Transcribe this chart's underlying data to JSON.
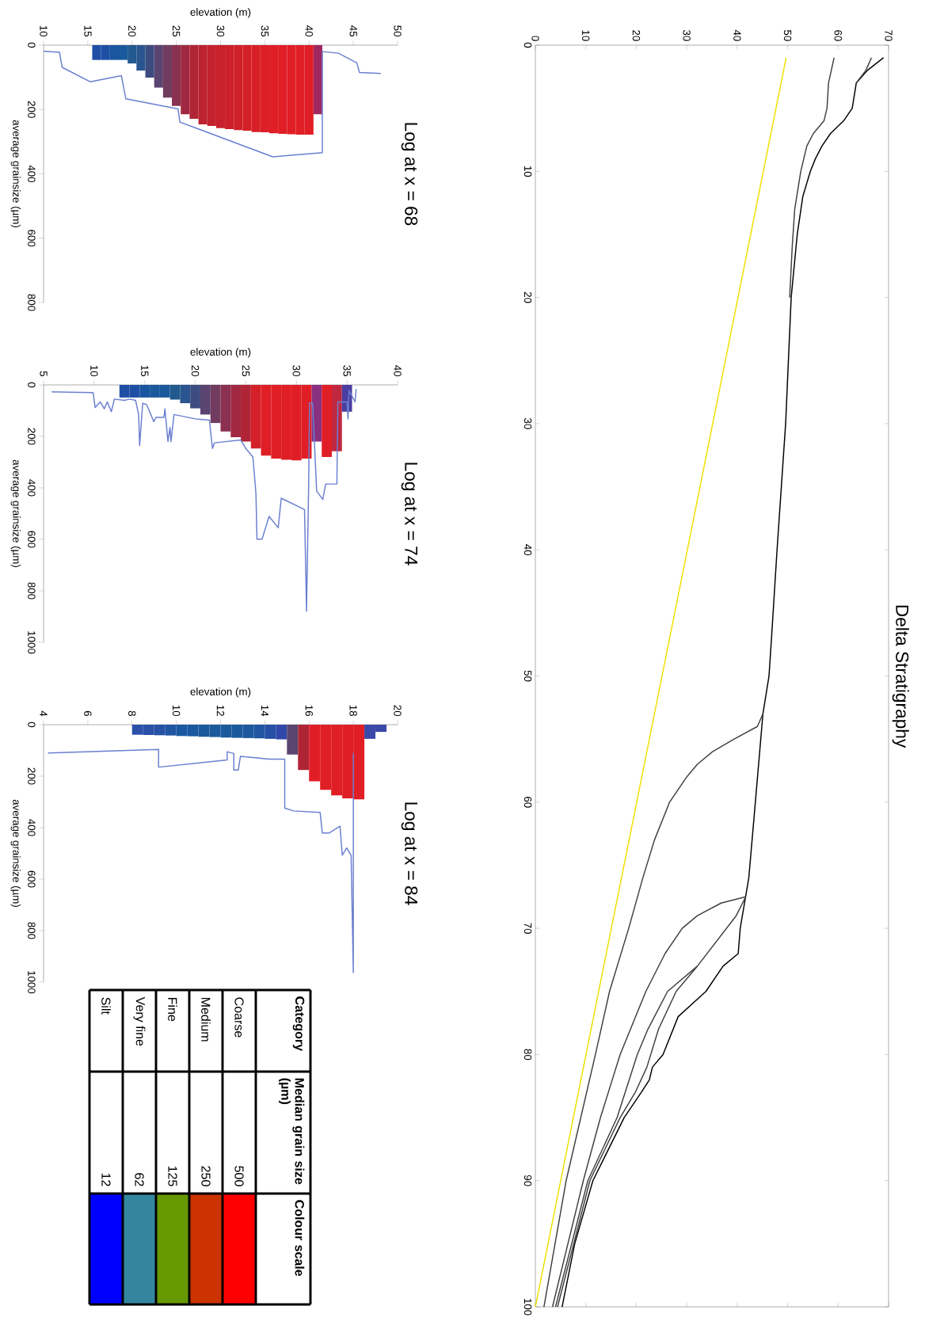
{
  "chart_data": [
    {
      "type": "line",
      "title": "Delta Stratigraphy",
      "xlim": [
        0,
        70
      ],
      "ylim": [
        100,
        0
      ],
      "xticks": [
        0,
        10,
        20,
        30,
        40,
        50,
        60,
        70
      ],
      "yticks": [
        0,
        10,
        20,
        30,
        40,
        50,
        60,
        70,
        80,
        90,
        100
      ],
      "marker": "none",
      "line_style": "solid",
      "series": [
        {
          "color": "#f0e000",
          "values": [
            1,
            100
          ],
          "x": [
            49.7,
            0
          ]
        },
        {
          "color": "#000000",
          "values": [
            1,
            2,
            3,
            5,
            6,
            7,
            8,
            9,
            10,
            12,
            15,
            20,
            30,
            40,
            47,
            50,
            53,
            60,
            66,
            70,
            72,
            73,
            75,
            77,
            80,
            81,
            82,
            83,
            85,
            90,
            95,
            100
          ],
          "x": [
            69.0,
            65.8,
            63.6,
            62.8,
            61.1,
            58.5,
            56.8,
            55.5,
            54.5,
            53.0,
            51.9,
            50.7,
            49.6,
            47.9,
            46.8,
            46.3,
            45.1,
            43.6,
            42.3,
            40.6,
            40.2,
            37.2,
            33.8,
            28.3,
            25.3,
            23.2,
            22.6,
            21.0,
            17.6,
            11.4,
            7.8,
            5.3
          ]
        },
        {
          "color": "#404040",
          "values": [
            1,
            3,
            5,
            6,
            7,
            8,
            10,
            13,
            16,
            20
          ],
          "x": [
            59.2,
            58.1,
            57.8,
            57.2,
            55.1,
            53.8,
            52.6,
            51.4,
            50.9,
            50.4
          ]
        },
        {
          "color": "#404040",
          "values": [
            1,
            2,
            3
          ],
          "x": [
            66.6,
            65.5,
            63.6
          ]
        },
        {
          "color": "#404040",
          "values": [
            53,
            54,
            55,
            56,
            57,
            58,
            60,
            63,
            66,
            70,
            75,
            80,
            90,
            100
          ],
          "x": [
            45.1,
            44.0,
            39.4,
            35.1,
            32.1,
            30.0,
            26.6,
            23.6,
            21.3,
            18.5,
            14.7,
            11.9,
            6.1,
            1.7
          ]
        },
        {
          "color": "#404040",
          "values": [
            67.5,
            68,
            69,
            70,
            72,
            75,
            80,
            85,
            90,
            100
          ],
          "x": [
            41.7,
            36.8,
            32.1,
            29.1,
            25.7,
            21.9,
            16.8,
            12.9,
            9.5,
            3.4
          ]
        },
        {
          "color": "#404040",
          "values": [
            67.5,
            69,
            73,
            75,
            78,
            81,
            83,
            85,
            90,
            100
          ],
          "x": [
            41.7,
            39.8,
            32.1,
            27.9,
            24.4,
            22.1,
            19.8,
            16.8,
            10.8,
            4.4
          ]
        },
        {
          "color": "#404040",
          "values": [
            73,
            75,
            78,
            80,
            85,
            90,
            100
          ],
          "x": [
            32.1,
            26.2,
            22.3,
            20.2,
            16.2,
            10.4,
            4.0
          ]
        }
      ]
    },
    {
      "type": "bar",
      "title": "Log at x = 68",
      "xlabel": "elevation (m)",
      "ylabel": "average grainsize (µm)",
      "xlim": [
        10,
        50
      ],
      "xticks": [
        10,
        15,
        20,
        25,
        30,
        35,
        40,
        45,
        50
      ],
      "ylim": [
        800,
        0
      ],
      "yticks": [
        0,
        200,
        400,
        600,
        800
      ],
      "series": [
        {
          "type": "bar",
          "x": [
            16,
            17,
            18,
            19,
            20,
            21,
            22,
            23,
            24,
            25,
            26,
            27,
            28,
            29,
            30,
            31,
            32,
            33,
            34,
            35,
            36,
            37,
            38,
            39,
            40,
            41
          ],
          "values": [
            46,
            46,
            46,
            46,
            57,
            79,
            101,
            132,
            163,
            189,
            215,
            229,
            246,
            251,
            258,
            261,
            264,
            266,
            270,
            271,
            274,
            276,
            277,
            278,
            278,
            215
          ],
          "colors": [
            "#1e4fa5",
            "#1e4fa5",
            "#1a55a0",
            "#1a5a9c",
            "#22598f",
            "#2a5590",
            "#3c4c80",
            "#5a4470",
            "#723c60",
            "#8a3050",
            "#a02840",
            "#b02535",
            "#bc2230",
            "#c4212e",
            "#c8202c",
            "#cc202b",
            "#d02029",
            "#d42028",
            "#d81f27",
            "#dc1f27",
            "#e01e26",
            "#e01e26",
            "#e01e26",
            "#e01e26",
            "#e01e26",
            "#a02860"
          ]
        },
        {
          "type": "line",
          "color": "#6a7fd0",
          "x": [
            10,
            11.8,
            12.1,
            15.3,
            18.8,
            19.3,
            25.2,
            25.4,
            35.9,
            41.5,
            41.5,
            43.3,
            45.4,
            45.7,
            48.1
          ],
          "values": [
            19,
            22,
            69,
            114,
            95,
            167,
            198,
            239,
            347,
            334,
            20,
            25,
            55,
            85,
            88
          ]
        }
      ]
    },
    {
      "type": "bar",
      "title": "Log at x = 74",
      "xlabel": "elevation (m)",
      "ylabel": "average grainsize (µm)",
      "xlim": [
        5,
        40
      ],
      "xticks": [
        5,
        10,
        15,
        20,
        25,
        30,
        35,
        40
      ],
      "ylim": [
        1000,
        0
      ],
      "yticks": [
        0,
        200,
        400,
        600,
        800,
        1000
      ],
      "series": [
        {
          "type": "bar",
          "x": [
            13,
            14,
            15,
            16,
            17,
            18,
            19,
            20,
            21,
            22,
            23,
            24,
            25,
            26,
            27,
            28,
            29,
            30,
            31,
            32,
            33,
            34,
            35
          ],
          "values": [
            49,
            49,
            49,
            49,
            49,
            57,
            71,
            91,
            115,
            148,
            181,
            203,
            220,
            247,
            275,
            286,
            291,
            293,
            286,
            220,
            280,
            258,
            104
          ],
          "colors": [
            "#1e4fa5",
            "#1e4fa5",
            "#1a55a0",
            "#1a5a9c",
            "#1a5a9c",
            "#22598f",
            "#2a5590",
            "#3c4c80",
            "#5a4470",
            "#723c60",
            "#8a3050",
            "#a02840",
            "#b02535",
            "#d42028",
            "#e01e26",
            "#e01e26",
            "#e01e26",
            "#e01e26",
            "#e01e26",
            "#8a3080",
            "#e01e26",
            "#c02840",
            "#4a3ca0"
          ]
        },
        {
          "type": "line",
          "color": "#6a7fd0",
          "x": [
            5.8,
            9.9,
            10.1,
            10.6,
            11.0,
            11.3,
            11.7,
            12.0,
            13.0,
            13.5,
            14.1,
            14.4,
            14.5,
            14.8,
            15.2,
            15.9,
            16.1,
            16.9,
            17.0,
            17.3,
            17.5,
            17.6,
            17.9,
            20.0,
            21.4,
            21.7,
            21.9,
            24.5,
            25.0,
            25.7,
            26.0,
            26.1,
            26.6,
            27.3,
            28.2,
            28.5,
            30.8,
            31.0,
            31.2,
            31.3,
            31.6,
            32.0,
            32.6,
            32.9,
            34.0,
            34.1,
            35.0,
            35.1,
            35.2,
            35.8,
            35.9
          ],
          "values": [
            27,
            30,
            88,
            66,
            93,
            66,
            104,
            55,
            60,
            55,
            60,
            115,
            236,
            71,
            77,
            143,
            126,
            126,
            93,
            220,
            165,
            220,
            115,
            132,
            137,
            247,
            225,
            214,
            247,
            280,
            423,
            599,
            599,
            511,
            555,
            440,
            484,
            879,
            412,
            71,
            71,
            412,
            445,
            385,
            385,
            66,
            66,
            132,
            22,
            66,
            16
          ]
        }
      ]
    },
    {
      "type": "bar",
      "title": "Log at x = 84",
      "xlabel": "elevation (m)",
      "ylabel": "average grainsize (µm)",
      "xlim": [
        4,
        20
      ],
      "xticks": [
        4,
        6,
        8,
        10,
        12,
        14,
        16,
        18,
        20
      ],
      "ylim": [
        1000,
        0
      ],
      "yticks": [
        0,
        200,
        400,
        600,
        800,
        1000
      ],
      "series": [
        {
          "type": "bar",
          "x": [
            8.25,
            8.75,
            9.25,
            9.75,
            10.25,
            10.75,
            11.25,
            11.75,
            12.25,
            12.75,
            13.25,
            13.75,
            14.25,
            14.75,
            15.25,
            15.75,
            16.25,
            16.75,
            17.25,
            17.75,
            18.25,
            18.75,
            19.25
          ],
          "values": [
            39,
            40,
            41,
            42,
            44,
            45,
            47,
            48,
            50,
            51,
            52,
            53,
            55,
            57,
            116,
            176,
            220,
            253,
            275,
            286,
            290,
            55,
            28
          ],
          "colors": [
            "#2a50a8",
            "#2a50a8",
            "#2552a5",
            "#2055a2",
            "#1a58a0",
            "#1a58a0",
            "#1a5a9c",
            "#1a5a9c",
            "#1a5a9c",
            "#1a5a9c",
            "#1d589e",
            "#2055a2",
            "#2550a5",
            "#3048a8",
            "#5a4470",
            "#b02535",
            "#e01e26",
            "#e01e26",
            "#e01e26",
            "#e01e26",
            "#e01e26",
            "#3a48a8",
            "#3a48a8"
          ]
        },
        {
          "type": "line",
          "color": "#6a7fd0",
          "x": [
            4.2,
            9.2,
            9.2,
            12.3,
            12.3,
            12.6,
            12.6,
            12.8,
            12.9,
            13.3,
            14.2,
            14.9,
            14.9,
            15.3,
            16.5,
            16.6,
            16.9,
            17.4,
            17.5,
            17.7,
            17.9,
            18.0,
            18.0
          ],
          "values": [
            110,
            96,
            165,
            137,
            105,
            112,
            176,
            176,
            123,
            126,
            134,
            134,
            324,
            335,
            341,
            421,
            421,
            394,
            507,
            479,
            507,
            963,
            110
          ]
        }
      ]
    },
    {
      "type": "other",
      "annotations": [
        "Category",
        "Median grain size (µm)",
        "Colour scale"
      ],
      "categories": [
        "Coarse",
        "Medium",
        "Fine",
        "Very fine",
        "Silt"
      ],
      "value_labels": [
        "500",
        "250",
        "125",
        "62",
        "12"
      ],
      "colors": [
        "#ff0000",
        "#cc3300",
        "#669900",
        "#33869e",
        "#0000ff"
      ]
    }
  ]
}
